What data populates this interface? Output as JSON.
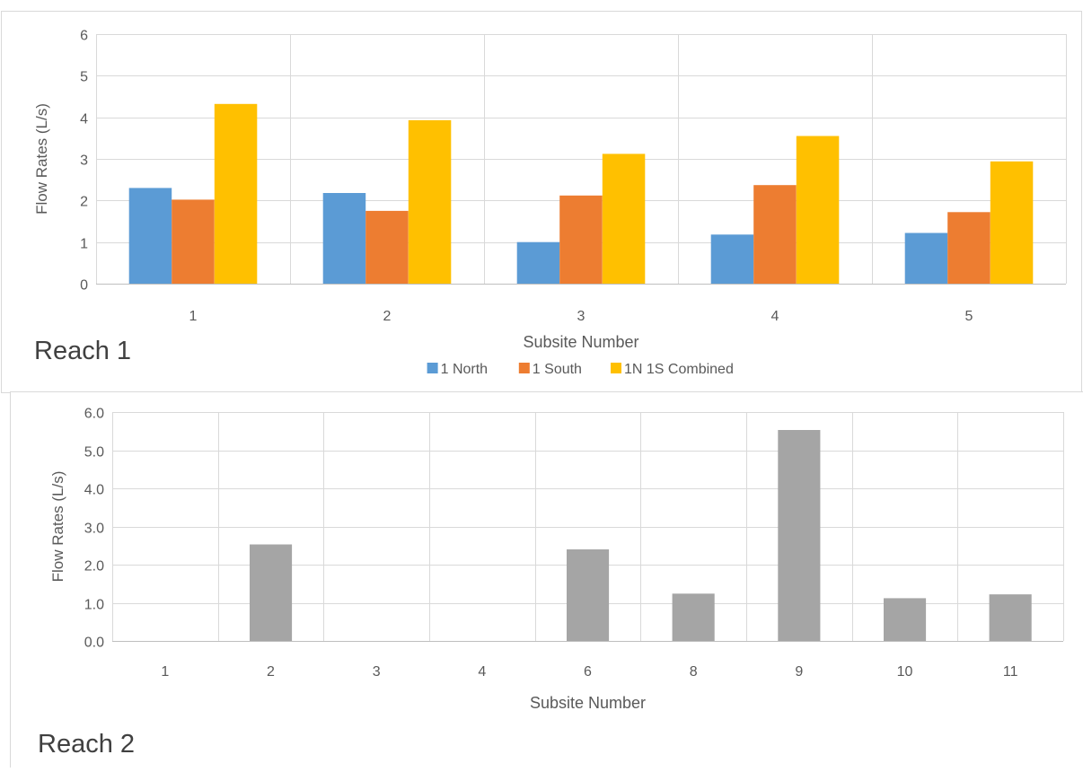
{
  "chart_data": [
    {
      "type": "bar",
      "title": "Reach 1",
      "xlabel": "Subsite Number",
      "ylabel": "Flow Rates (L/s)",
      "categories": [
        "1",
        "2",
        "3",
        "4",
        "5"
      ],
      "ylim": [
        0,
        6
      ],
      "yticks": [
        "0",
        "1",
        "2",
        "3",
        "4",
        "5",
        "6"
      ],
      "grid": true,
      "legend_position": "bottom",
      "series": [
        {
          "name": "1 North",
          "color": "#5B9BD5",
          "values": [
            2.3,
            2.18,
            1.0,
            1.18,
            1.22
          ]
        },
        {
          "name": "1 South",
          "color": "#ED7D31",
          "values": [
            2.02,
            1.75,
            2.12,
            2.37,
            1.72
          ]
        },
        {
          "name": "1N 1S Combined",
          "color": "#FFC000",
          "values": [
            4.32,
            3.93,
            3.12,
            3.55,
            2.94
          ]
        }
      ]
    },
    {
      "type": "bar",
      "title": "Reach 2",
      "xlabel": "Subsite Number",
      "ylabel": "Flow Rates (L/s)",
      "categories": [
        "1",
        "2",
        "3",
        "4",
        "6",
        "8",
        "9",
        "10",
        "11"
      ],
      "ylim": [
        0,
        6
      ],
      "yticks": [
        "0.0",
        "1.0",
        "2.0",
        "3.0",
        "4.0",
        "5.0",
        "6.0"
      ],
      "grid": true,
      "series": [
        {
          "color": "#A5A5A5",
          "values": [
            0,
            2.53,
            0,
            0,
            2.4,
            1.24,
            5.53,
            1.12,
            1.22
          ]
        }
      ]
    }
  ]
}
